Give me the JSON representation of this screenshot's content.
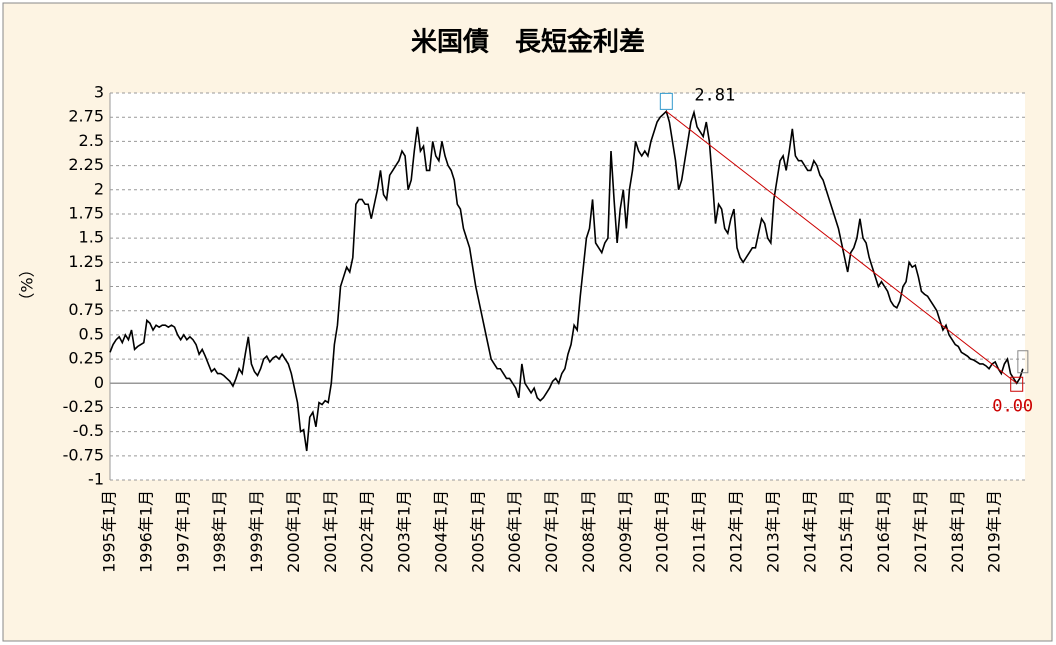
{
  "chart_data": {
    "type": "line",
    "title": "米国債　長短金利差",
    "ylabel": "（%）",
    "categories": [
      "1995年1月",
      null,
      null,
      null,
      null,
      null,
      null,
      null,
      null,
      null,
      null,
      null,
      "1996年1月",
      null,
      null,
      null,
      null,
      null,
      null,
      null,
      null,
      null,
      null,
      null,
      "1997年1月",
      null,
      null,
      null,
      null,
      null,
      null,
      null,
      null,
      null,
      null,
      null,
      "1998年1月",
      null,
      null,
      null,
      null,
      null,
      null,
      null,
      null,
      null,
      null,
      null,
      "1999年1月",
      null,
      null,
      null,
      null,
      null,
      null,
      null,
      null,
      null,
      null,
      null,
      "2000年1月",
      null,
      null,
      null,
      null,
      null,
      null,
      null,
      null,
      null,
      null,
      null,
      "2001年1月",
      null,
      null,
      null,
      null,
      null,
      null,
      null,
      null,
      null,
      null,
      null,
      "2002年1月",
      null,
      null,
      null,
      null,
      null,
      null,
      null,
      null,
      null,
      null,
      null,
      "2003年1月",
      null,
      null,
      null,
      null,
      null,
      null,
      null,
      null,
      null,
      null,
      null,
      "2004年1月",
      null,
      null,
      null,
      null,
      null,
      null,
      null,
      null,
      null,
      null,
      null,
      "2005年1月",
      null,
      null,
      null,
      null,
      null,
      null,
      null,
      null,
      null,
      null,
      null,
      "2006年1月",
      null,
      null,
      null,
      null,
      null,
      null,
      null,
      null,
      null,
      null,
      null,
      "2007年1月",
      null,
      null,
      null,
      null,
      null,
      null,
      null,
      null,
      null,
      null,
      null,
      "2008年1月",
      null,
      null,
      null,
      null,
      null,
      null,
      null,
      null,
      null,
      null,
      null,
      "2009年1月",
      null,
      null,
      null,
      null,
      null,
      null,
      null,
      null,
      null,
      null,
      null,
      "2010年1月",
      null,
      null,
      null,
      null,
      null,
      null,
      null,
      null,
      null,
      null,
      null,
      "2011年1月",
      null,
      null,
      null,
      null,
      null,
      null,
      null,
      null,
      null,
      null,
      null,
      "2012年1月",
      null,
      null,
      null,
      null,
      null,
      null,
      null,
      null,
      null,
      null,
      null,
      "2013年1月",
      null,
      null,
      null,
      null,
      null,
      null,
      null,
      null,
      null,
      null,
      null,
      "2014年1月",
      null,
      null,
      null,
      null,
      null,
      null,
      null,
      null,
      null,
      null,
      null,
      "2015年1月",
      null,
      null,
      null,
      null,
      null,
      null,
      null,
      null,
      null,
      null,
      null,
      "2016年1月",
      null,
      null,
      null,
      null,
      null,
      null,
      null,
      null,
      null,
      null,
      null,
      "2017年1月",
      null,
      null,
      null,
      null,
      null,
      null,
      null,
      null,
      null,
      null,
      null,
      "2018年1月",
      null,
      null,
      null,
      null,
      null,
      null,
      null,
      null,
      null,
      null,
      null,
      "2019年1月",
      null,
      null,
      null,
      null,
      null,
      null,
      null,
      null,
      null
    ],
    "values": [
      0.32,
      0.4,
      0.45,
      0.48,
      0.42,
      0.5,
      0.45,
      0.55,
      0.35,
      0.38,
      0.4,
      0.42,
      0.65,
      0.62,
      0.55,
      0.6,
      0.58,
      0.6,
      0.6,
      0.58,
      0.6,
      0.58,
      0.5,
      0.45,
      0.5,
      0.45,
      0.48,
      0.45,
      0.4,
      0.3,
      0.35,
      0.28,
      0.2,
      0.12,
      0.15,
      0.1,
      0.1,
      0.08,
      0.05,
      0.02,
      -0.03,
      0.05,
      0.15,
      0.1,
      0.3,
      0.48,
      0.2,
      0.12,
      0.08,
      0.15,
      0.25,
      0.28,
      0.22,
      0.26,
      0.28,
      0.25,
      0.3,
      0.25,
      0.2,
      0.1,
      -0.05,
      -0.2,
      -0.5,
      -0.48,
      -0.7,
      -0.35,
      -0.3,
      -0.45,
      -0.2,
      -0.22,
      -0.18,
      -0.2,
      0.0,
      0.4,
      0.6,
      1.0,
      1.1,
      1.2,
      1.15,
      1.3,
      1.85,
      1.9,
      1.9,
      1.85,
      1.85,
      1.7,
      1.85,
      2.0,
      2.2,
      1.95,
      1.9,
      2.15,
      2.2,
      2.25,
      2.3,
      2.4,
      2.35,
      2.0,
      2.1,
      2.4,
      2.65,
      2.4,
      2.45,
      2.2,
      2.2,
      2.5,
      2.35,
      2.3,
      2.5,
      2.35,
      2.25,
      2.2,
      2.1,
      1.85,
      1.8,
      1.6,
      1.5,
      1.4,
      1.2,
      1.0,
      0.85,
      0.7,
      0.55,
      0.4,
      0.25,
      0.2,
      0.15,
      0.15,
      0.1,
      0.05,
      0.05,
      0.0,
      -0.05,
      -0.15,
      0.2,
      0.0,
      -0.05,
      -0.1,
      -0.05,
      -0.15,
      -0.18,
      -0.15,
      -0.1,
      -0.05,
      0.02,
      0.05,
      0.0,
      0.1,
      0.15,
      0.3,
      0.4,
      0.6,
      0.55,
      0.9,
      1.2,
      1.5,
      1.6,
      1.9,
      1.45,
      1.4,
      1.35,
      1.45,
      1.5,
      2.4,
      1.9,
      1.45,
      1.8,
      2.0,
      1.6,
      2.0,
      2.2,
      2.5,
      2.4,
      2.35,
      2.4,
      2.35,
      2.5,
      2.6,
      2.7,
      2.75,
      2.78,
      2.81,
      2.7,
      2.5,
      2.3,
      2.0,
      2.1,
      2.3,
      2.5,
      2.7,
      2.8,
      2.65,
      2.6,
      2.55,
      2.7,
      2.5,
      2.1,
      1.65,
      1.85,
      1.8,
      1.6,
      1.55,
      1.7,
      1.8,
      1.4,
      1.3,
      1.25,
      1.3,
      1.35,
      1.4,
      1.4,
      1.55,
      1.7,
      1.65,
      1.5,
      1.45,
      1.9,
      2.1,
      2.3,
      2.35,
      2.2,
      2.4,
      2.63,
      2.35,
      2.3,
      2.3,
      2.25,
      2.2,
      2.2,
      2.3,
      2.25,
      2.15,
      2.1,
      2.0,
      1.9,
      1.8,
      1.7,
      1.6,
      1.45,
      1.3,
      1.15,
      1.35,
      1.4,
      1.5,
      1.7,
      1.5,
      1.45,
      1.3,
      1.2,
      1.1,
      1.0,
      1.05,
      1.0,
      0.95,
      0.85,
      0.8,
      0.78,
      0.85,
      1.0,
      1.05,
      1.25,
      1.2,
      1.22,
      1.1,
      0.95,
      0.92,
      0.9,
      0.85,
      0.8,
      0.75,
      0.65,
      0.55,
      0.6,
      0.5,
      0.45,
      0.4,
      0.38,
      0.32,
      0.3,
      0.28,
      0.25,
      0.24,
      0.22,
      0.2,
      0.2,
      0.18,
      0.15,
      0.2,
      0.22,
      0.15,
      0.1,
      0.2,
      0.25,
      0.1,
      0.05,
      0.0,
      0.05,
      0.15
    ],
    "value_labels": [
      null,
      null,
      null,
      null,
      null,
      null,
      null,
      null,
      null,
      null,
      null,
      null,
      null,
      null,
      null,
      null,
      null,
      null,
      null,
      null,
      null,
      null,
      null,
      null,
      null,
      null,
      null,
      null,
      null,
      null,
      null,
      null,
      null,
      null,
      null,
      null,
      null,
      null,
      null,
      null,
      null,
      null,
      null,
      null,
      null,
      null,
      null,
      null,
      null,
      null,
      null,
      null,
      null,
      null,
      null,
      null,
      null,
      null,
      null,
      null,
      null,
      null,
      null,
      null,
      null,
      null,
      null,
      null,
      null,
      null,
      null,
      null,
      null,
      null,
      null,
      null,
      null,
      null,
      null,
      null,
      null,
      null,
      null,
      null,
      null,
      null,
      null,
      null,
      null,
      null,
      null,
      null,
      null,
      null,
      null,
      null,
      null,
      null,
      null,
      null,
      null,
      null,
      null,
      null,
      null,
      null,
      null,
      null,
      null,
      null,
      null,
      null,
      null,
      null,
      null,
      null,
      null,
      null,
      null,
      null,
      null,
      null,
      null,
      null,
      null,
      null,
      null,
      null,
      null,
      null,
      null,
      null,
      null,
      null,
      null,
      null,
      null,
      null,
      null,
      null,
      null,
      null,
      null,
      null,
      null,
      null,
      null,
      null,
      null,
      null,
      null,
      null,
      null,
      null,
      null,
      null,
      null,
      null,
      null,
      null,
      null,
      null,
      null,
      null,
      null,
      null,
      null,
      null,
      null,
      null,
      null,
      null,
      null,
      null,
      null,
      null,
      null,
      null,
      null,
      null,
      null,
      "2.81",
      null,
      null,
      null,
      null,
      null,
      null,
      null,
      null,
      null,
      null,
      null,
      null,
      null,
      null,
      null,
      null,
      null,
      null,
      null,
      null,
      null,
      null,
      null,
      null,
      null,
      null,
      null,
      null,
      null,
      null,
      null,
      null,
      null,
      null,
      null,
      null,
      null,
      null,
      null,
      null,
      null,
      null,
      null,
      null,
      null,
      null,
      null,
      null,
      null,
      null,
      null,
      null,
      null,
      null,
      null,
      null,
      null,
      null,
      null,
      null,
      null,
      null,
      null,
      null,
      null,
      null,
      null,
      null,
      null,
      null,
      null,
      null,
      null,
      null,
      null,
      null,
      null,
      null,
      null,
      null,
      null,
      null,
      null,
      null,
      null,
      null,
      null,
      null,
      null,
      null,
      null,
      null,
      null,
      null,
      null,
      null,
      null,
      null,
      null,
      null,
      null,
      null,
      null,
      null,
      null,
      null,
      null,
      null,
      null,
      null,
      null,
      null,
      null,
      "0.00",
      null,
      null
    ],
    "color": "#000000",
    "trend_color": "#cc0000",
    "ylim": [
      -1,
      3
    ],
    "yticks": [
      -1,
      -0.75,
      -0.5,
      -0.25,
      0,
      0.25,
      0.5,
      0.75,
      1,
      1.25,
      1.5,
      1.75,
      2,
      2.25,
      2.5,
      2.75,
      3
    ],
    "grid": true
  }
}
